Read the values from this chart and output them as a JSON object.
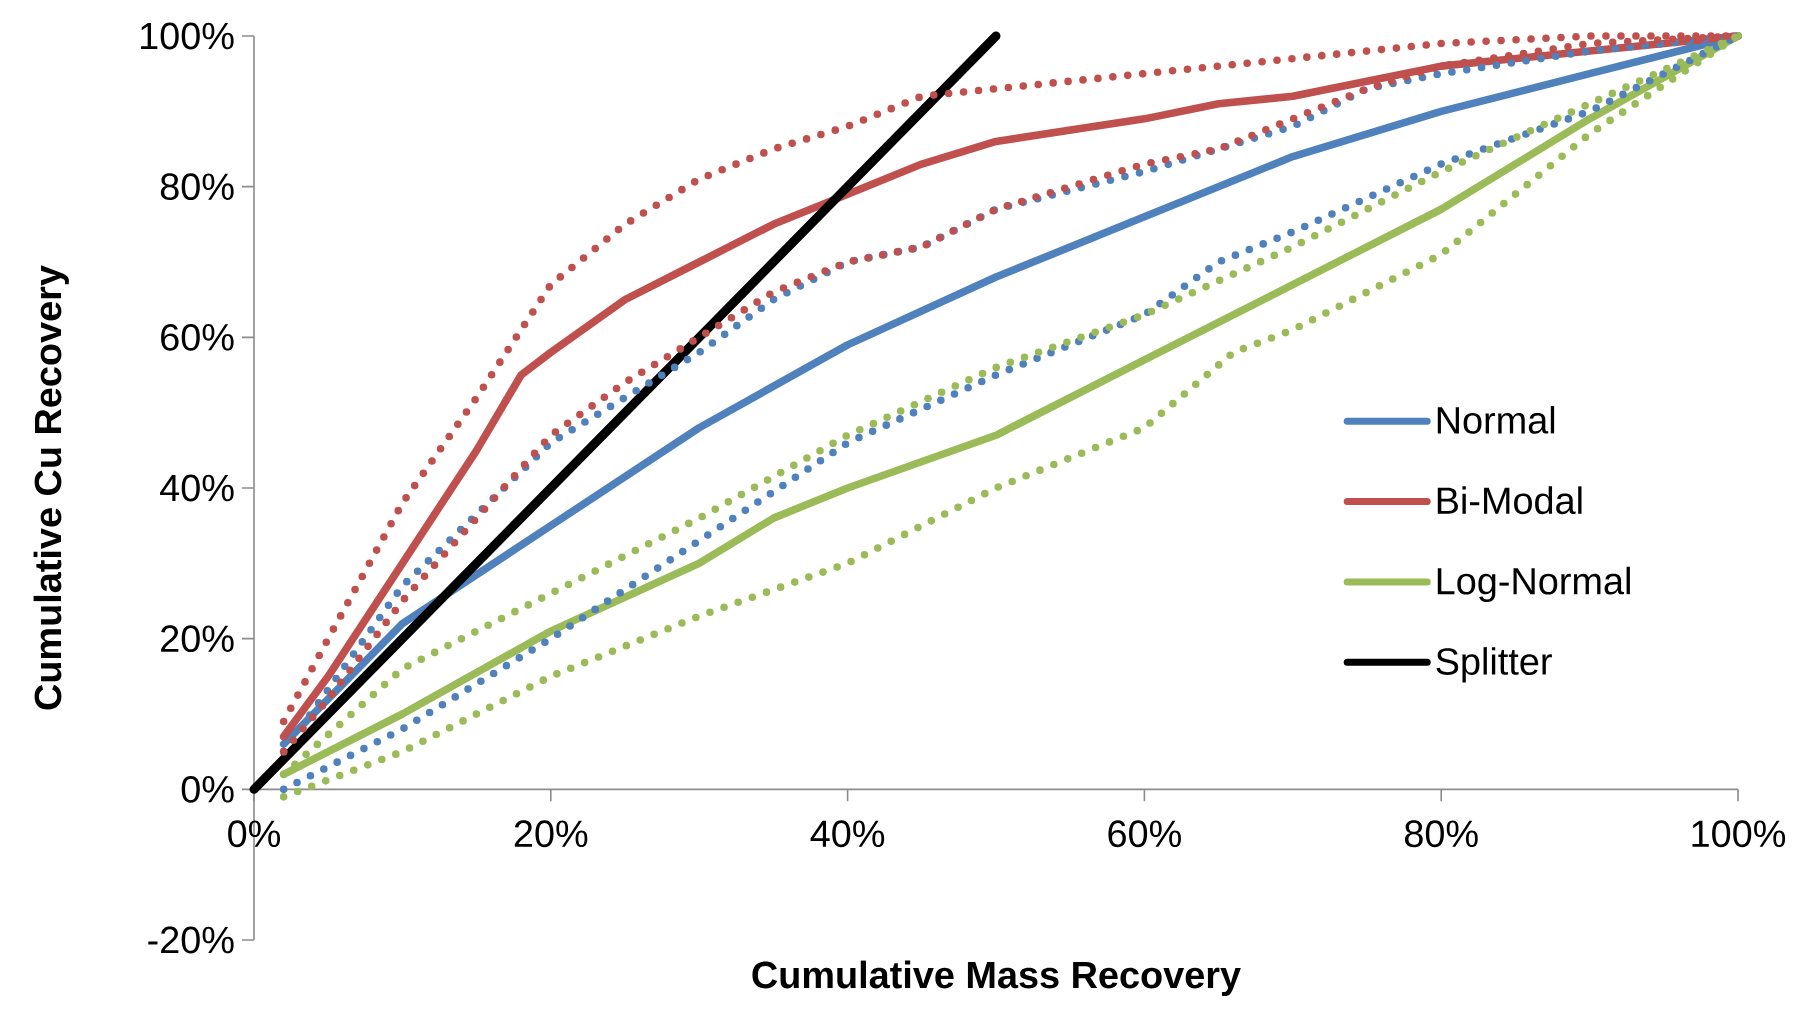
{
  "chart_data": {
    "type": "line",
    "xlabel": "Cumulative Mass Recovery",
    "ylabel": "Cumulative Cu Recovery",
    "xlim": [
      0,
      100
    ],
    "ylim": [
      -20,
      100
    ],
    "xticks": [
      {
        "value": 0,
        "label": "0%"
      },
      {
        "value": 20,
        "label": "20%"
      },
      {
        "value": 40,
        "label": "40%"
      },
      {
        "value": 60,
        "label": "60%"
      },
      {
        "value": 80,
        "label": "80%"
      },
      {
        "value": 100,
        "label": "100%"
      }
    ],
    "yticks": [
      {
        "value": -20,
        "label": "-20%"
      },
      {
        "value": 0,
        "label": "0%"
      },
      {
        "value": 20,
        "label": "20%"
      },
      {
        "value": 40,
        "label": "40%"
      },
      {
        "value": 60,
        "label": "60%"
      },
      {
        "value": 80,
        "label": "80%"
      },
      {
        "value": 100,
        "label": "100%"
      }
    ],
    "grid": false,
    "legend": "bottom right",
    "marker": "none",
    "series": [
      {
        "name": "Normal",
        "color": "#4f81bd",
        "line_style": "solid",
        "x": [
          2,
          10,
          20,
          30,
          40,
          50,
          60,
          70,
          80,
          90,
          100
        ],
        "values": [
          6,
          22,
          35,
          48,
          59,
          68,
          76,
          84,
          90,
          95,
          100
        ]
      },
      {
        "name": "Bi-Modal",
        "color": "#c0504d",
        "line_style": "solid",
        "x": [
          2,
          5,
          10,
          15,
          18,
          20,
          25,
          30,
          35,
          40,
          45,
          50,
          60,
          65,
          70,
          75,
          80,
          90,
          100
        ],
        "values": [
          7,
          15,
          30,
          45,
          55,
          58,
          65,
          70,
          75,
          79,
          83,
          86,
          89,
          91,
          92,
          94,
          96,
          98,
          100
        ]
      },
      {
        "name": "Log-Normal",
        "color": "#9bbb59",
        "line_style": "solid",
        "x": [
          2,
          10,
          20,
          30,
          35,
          40,
          50,
          60,
          70,
          80,
          90,
          100
        ],
        "values": [
          2,
          10,
          21,
          30,
          36,
          40,
          47,
          57,
          67,
          77,
          89,
          100
        ]
      },
      {
        "name": "Splitter",
        "color": "#000000",
        "line_style": "solid",
        "x": [
          0,
          50
        ],
        "values": [
          0,
          100
        ]
      },
      {
        "color": "#4f81bd",
        "line_style": "dotted",
        "x": [
          2,
          10,
          20,
          30,
          35,
          40,
          45,
          50,
          60,
          70,
          75,
          80,
          90,
          100
        ],
        "values": [
          5,
          27,
          46,
          58,
          65,
          70,
          72,
          77,
          82,
          88,
          93,
          95,
          98,
          100
        ]
      },
      {
        "color": "#4f81bd",
        "line_style": "dotted",
        "x": [
          2,
          5,
          10,
          20,
          30,
          40,
          50,
          60,
          65,
          70,
          80,
          90,
          100
        ],
        "values": [
          0,
          3,
          8,
          20,
          33,
          46,
          55,
          63,
          70,
          74,
          83,
          90,
          100
        ]
      },
      {
        "color": "#c0504d",
        "line_style": "dotted",
        "x": [
          2,
          5,
          10,
          15,
          20,
          25,
          30,
          35,
          40,
          45,
          50,
          60,
          70,
          80,
          90,
          100
        ],
        "values": [
          9,
          20,
          38,
          52,
          67,
          75,
          81,
          85,
          88,
          92,
          93,
          95,
          97,
          99,
          100,
          100
        ]
      },
      {
        "color": "#c0504d",
        "line_style": "dotted",
        "x": [
          2,
          5,
          10,
          15,
          20,
          25,
          30,
          35,
          40,
          45,
          50,
          60,
          65,
          70,
          75,
          80,
          90,
          100
        ],
        "values": [
          5,
          12,
          25,
          36,
          47,
          54,
          60,
          66,
          70,
          72,
          77,
          83,
          85,
          89,
          93,
          96,
          99,
          100
        ]
      },
      {
        "color": "#9bbb59",
        "line_style": "dotted",
        "x": [
          2,
          10,
          20,
          30,
          40,
          50,
          60,
          70,
          80,
          90,
          100
        ],
        "values": [
          2,
          16,
          26,
          36,
          47,
          56,
          63,
          72,
          82,
          91,
          100
        ]
      },
      {
        "color": "#9bbb59",
        "line_style": "dotted",
        "x": [
          2,
          10,
          20,
          30,
          40,
          50,
          60,
          66,
          70,
          80,
          90,
          100
        ],
        "values": [
          -1,
          5,
          15,
          23,
          30,
          40,
          48,
          58,
          61,
          71,
          87,
          100
        ]
      }
    ]
  }
}
